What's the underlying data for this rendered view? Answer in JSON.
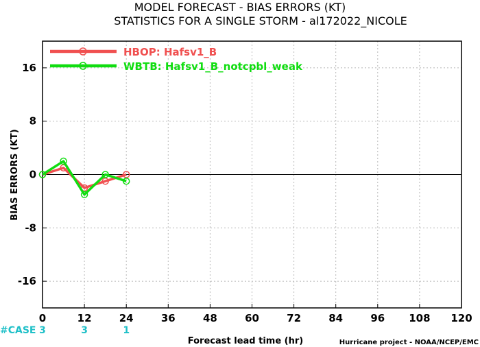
{
  "chart_data": {
    "type": "line",
    "title": "MODEL FORECAST - BIAS ERRORS (KT)",
    "subtitle": "STATISTICS FOR A SINGLE STORM - al172022_NICOLE",
    "xlabel": "Forecast lead time (hr)",
    "ylabel": "BIAS ERRORS (KT)",
    "xlim": [
      0,
      120
    ],
    "ylim": [
      -20,
      20
    ],
    "x_ticks": [
      0,
      12,
      24,
      36,
      48,
      60,
      72,
      84,
      96,
      108,
      120
    ],
    "y_ticks": [
      -16,
      -8,
      0,
      8,
      16
    ],
    "grid": true,
    "legend_position": "top-left",
    "series": [
      {
        "name": "HBOP: Hafsv1_B",
        "color": "#f05050",
        "x": [
          0,
          6,
          12,
          18,
          24
        ],
        "y": [
          0,
          1,
          -2,
          -1,
          0
        ]
      },
      {
        "name": "WBTB: Hafsv1_B_notcpbl_weak",
        "color": "#10dd10",
        "x": [
          0,
          6,
          12,
          18,
          24
        ],
        "y": [
          0,
          2,
          -3,
          0,
          -1
        ]
      }
    ],
    "case_label": "#CASE",
    "case_counts": [
      {
        "x": 0,
        "n": "3"
      },
      {
        "x": 12,
        "n": "3"
      },
      {
        "x": 24,
        "n": "1"
      }
    ],
    "credit": "Hurricane project - NOAA/NCEP/EMC"
  }
}
